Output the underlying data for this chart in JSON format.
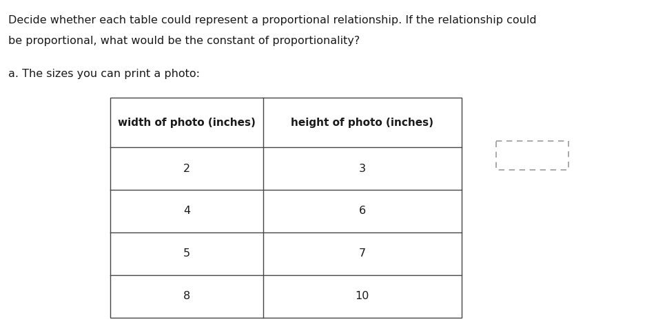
{
  "title_line1": "Decide whether each table could represent a proportional relationship. If the relationship could",
  "title_line2": "be proportional, what would be the constant of proportionality?",
  "subtitle": "a. The sizes you can print a photo:",
  "col1_header": "width of photo (inches)",
  "col2_header": "height of photo (inches)",
  "rows": [
    [
      "2",
      "3"
    ],
    [
      "4",
      "6"
    ],
    [
      "5",
      "7"
    ],
    [
      "8",
      "10"
    ]
  ],
  "bg_color": "#ffffff",
  "text_color": "#1a1a1a",
  "border_color": "#444444",
  "title_fontsize": 11.5,
  "subtitle_fontsize": 11.5,
  "header_fontsize": 11,
  "data_fontsize": 11.5,
  "dashed_color": "#999999"
}
